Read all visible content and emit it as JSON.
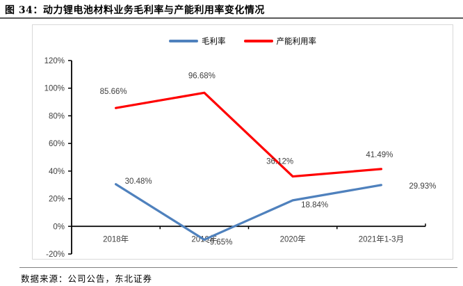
{
  "title": "图 34：动力锂电池材料业务毛利率与产能利用率变化情况",
  "source": "数据来源：公司公告，东北证券",
  "chart_data": {
    "type": "line",
    "title": "动力锂电池材料业务毛利率与产能利用率变化情况",
    "categories": [
      "2018年",
      "2019年",
      "2020年",
      "2021年1-3月"
    ],
    "series": [
      {
        "name": "毛利率",
        "color": "#4F81BD",
        "values": [
          30.48,
          -9.65,
          18.84,
          29.93
        ],
        "labels": [
          "30.48%",
          "-9.65%",
          "18.84%",
          "29.93%"
        ]
      },
      {
        "name": "产能利用率",
        "color": "#FF0000",
        "values": [
          85.66,
          96.68,
          36.12,
          41.49
        ],
        "labels": [
          "85.66%",
          "96.68%",
          "36.12%",
          "41.49%"
        ]
      }
    ],
    "ylim": [
      -20,
      120
    ],
    "yticks": [
      120,
      100,
      80,
      60,
      40,
      20,
      0,
      -20
    ],
    "ytick_labels": [
      "120%",
      "100%",
      "80%",
      "60%",
      "40%",
      "20%",
      "0%",
      "-20%"
    ],
    "legend_position": "top-center",
    "grid": false,
    "axis_color": "#000000",
    "tick_label_color": "#404040",
    "data_label_color": "#404040"
  }
}
